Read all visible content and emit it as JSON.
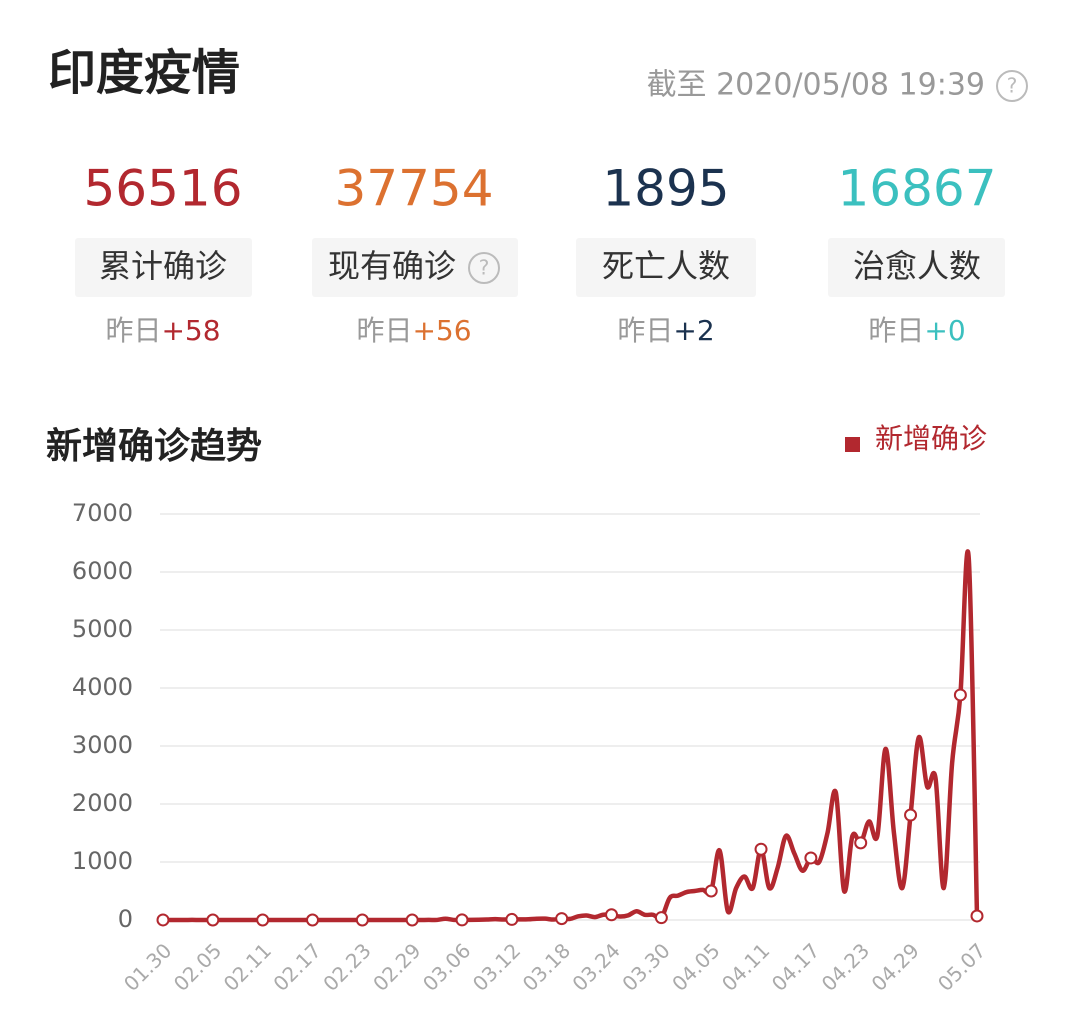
{
  "header": {
    "title": "印度疫情",
    "updated": "截至 2020/05/08 19:39"
  },
  "stats": [
    {
      "value": "56516",
      "label": "累计确诊",
      "delta_label": "昨日",
      "delta": "+58",
      "color": "#b2282f"
    },
    {
      "value": "37754",
      "label": "现有确诊",
      "delta_label": "昨日",
      "delta": "+56",
      "color": "#dc7130"
    },
    {
      "value": "1895",
      "label": "死亡人数",
      "delta_label": "昨日",
      "delta": "+2",
      "color": "#1b324f"
    },
    {
      "value": "16867",
      "label": "治愈人数",
      "delta_label": "昨日",
      "delta": "+0",
      "color": "#3bc0bf"
    }
  ],
  "chart_data": {
    "type": "line",
    "title": "新增确诊趋势",
    "categories": [
      "01.30",
      null,
      null,
      null,
      null,
      null,
      "02.05",
      null,
      null,
      null,
      null,
      null,
      "02.11",
      null,
      null,
      null,
      null,
      null,
      "02.17",
      null,
      null,
      null,
      null,
      null,
      "02.23",
      null,
      null,
      null,
      null,
      null,
      "02.29",
      null,
      null,
      null,
      null,
      null,
      "03.06",
      null,
      null,
      null,
      null,
      null,
      "03.12",
      null,
      null,
      null,
      null,
      null,
      "03.18",
      null,
      null,
      null,
      null,
      null,
      "03.24",
      null,
      null,
      null,
      null,
      null,
      "03.30",
      null,
      null,
      null,
      null,
      null,
      "04.05",
      null,
      null,
      null,
      null,
      null,
      "04.11",
      null,
      null,
      null,
      null,
      null,
      "04.17",
      null,
      null,
      null,
      null,
      null,
      "04.23",
      null,
      null,
      null,
      null,
      null,
      "04.29",
      null,
      null,
      null,
      null,
      null,
      null,
      null,
      "05.07"
    ],
    "series": [
      {
        "name": "新增确诊",
        "color": "#b2282f",
        "values": [
          1,
          0,
          0,
          1,
          1,
          0,
          0,
          0,
          0,
          0,
          0,
          0,
          0,
          0,
          0,
          0,
          0,
          0,
          0,
          0,
          0,
          0,
          0,
          0,
          0,
          0,
          0,
          0,
          0,
          0,
          0,
          0,
          2,
          1,
          22,
          1,
          2,
          3,
          5,
          9,
          15,
          8,
          10,
          10,
          12,
          22,
          23,
          8,
          24,
          19,
          63,
          78,
          50,
          90,
          90,
          60,
          80,
          150,
          90,
          90,
          40,
          380,
          420,
          480,
          500,
          520,
          500,
          1200,
          150,
          550,
          750,
          550,
          1220,
          550,
          900,
          1450,
          1150,
          850,
          1070,
          1000,
          1500,
          2200,
          500,
          1450,
          1330,
          1700,
          1450,
          2950,
          1500,
          550,
          1810,
          3150,
          2300,
          2450,
          550,
          2700,
          3880,
          6250,
          70
        ]
      }
    ],
    "ylim": [
      0,
      7000
    ],
    "yticks": [
      0,
      1000,
      2000,
      3000,
      4000,
      5000,
      6000,
      7000
    ],
    "grid": true,
    "legend": "top-right"
  }
}
